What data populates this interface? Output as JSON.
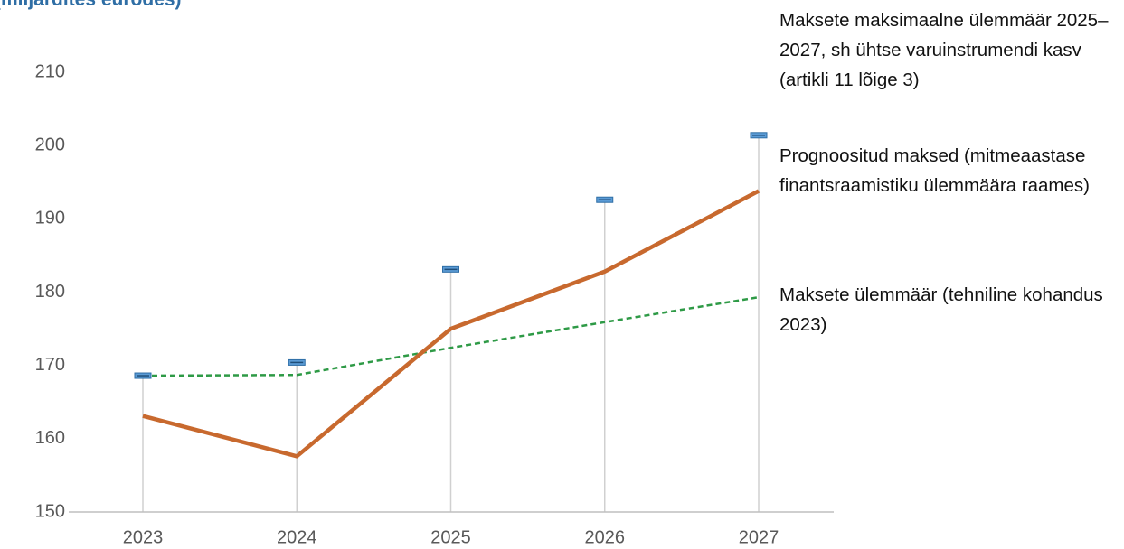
{
  "chart_data": {
    "type": "line",
    "title": "(miljardites eurodes)",
    "categories": [
      "2023",
      "2024",
      "2025",
      "2026",
      "2027"
    ],
    "series": [
      {
        "name": "Maksete maksimaalne ülemmäär 2025–2027, sh ühtse varuinstrumendi kasv (artikli 11 lõige 3)",
        "color": "#5b9bd5",
        "style": "marker",
        "drop_lines": true,
        "values": [
          168.6,
          170.4,
          183.1,
          192.6,
          201.4
        ]
      },
      {
        "name": "Prognoositud maksed (mitmeaastase finantsraamistiku ülemmäära raames)",
        "color": "#c8692e",
        "style": "solid",
        "values": [
          163.1,
          157.6,
          175.0,
          182.8,
          193.8
        ]
      },
      {
        "name": "Maksete ülemmäär (tehniline kohandus 2023)",
        "color": "#2e9a46",
        "style": "dashed",
        "values": [
          168.6,
          168.7,
          172.4,
          175.9,
          179.3
        ]
      }
    ],
    "ylim": [
      150,
      210
    ],
    "yticks": [
      150,
      160,
      170,
      180,
      190,
      200,
      210
    ],
    "grid": false
  }
}
